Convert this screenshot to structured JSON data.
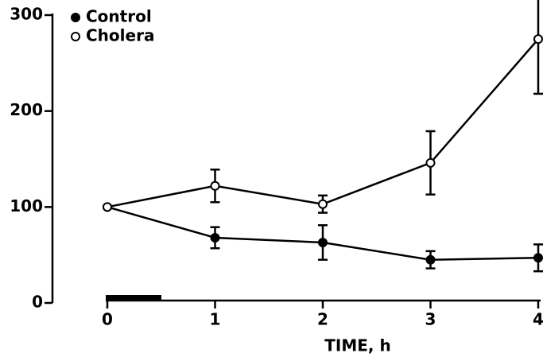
{
  "chart_data": {
    "type": "line",
    "x": [
      0,
      1,
      2,
      3,
      4
    ],
    "xlabel": "TIME, h",
    "xlim": [
      0,
      4
    ],
    "xticks": [
      0,
      1,
      2,
      3,
      4
    ],
    "ylim": [
      0,
      300
    ],
    "yticks": [
      0,
      100,
      200,
      300
    ],
    "legend": "upper left",
    "series": [
      {
        "name": "Control",
        "color": "#000000",
        "marker": "filled",
        "values": [
          100,
          68,
          63,
          45,
          47
        ],
        "errors": [
          0,
          11,
          18,
          9,
          14
        ]
      },
      {
        "name": "Cholera",
        "color": "#000000",
        "marker": "open",
        "values": [
          100,
          122,
          103,
          146,
          275
        ],
        "errors": [
          0,
          17,
          9,
          33,
          57
        ]
      }
    ]
  }
}
